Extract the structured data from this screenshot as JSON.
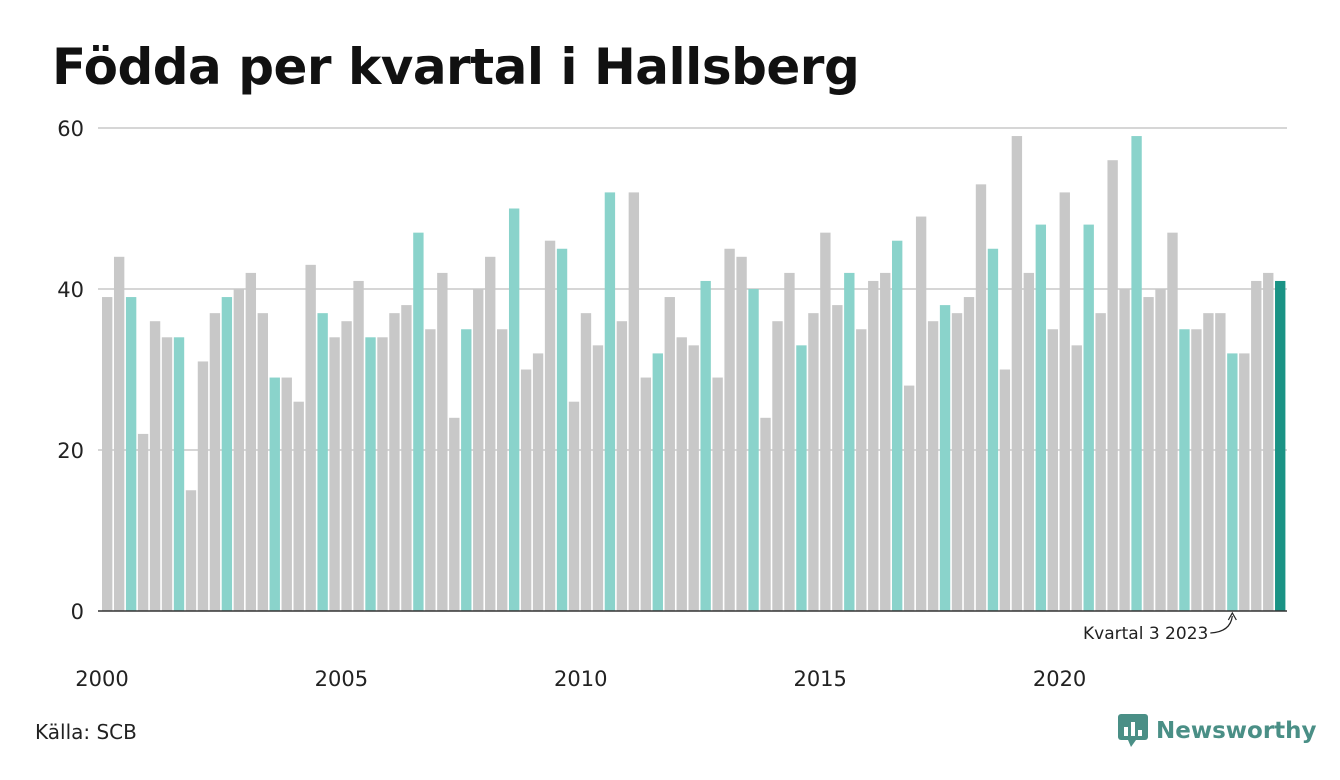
{
  "chart_data": {
    "type": "bar",
    "title": "Födda per kvartal i Hallsberg",
    "subtitle": "",
    "xlabel": "",
    "ylabel": "",
    "ylim": [
      0,
      60
    ],
    "yticks": [
      "0",
      "20",
      "40",
      "60"
    ],
    "grid": true,
    "xticks": [
      {
        "label": "2000",
        "year": 2000
      },
      {
        "label": "2005",
        "year": 2005
      },
      {
        "label": "2010",
        "year": 2010
      },
      {
        "label": "2015",
        "year": 2015
      },
      {
        "label": "2020",
        "year": 2020
      }
    ],
    "start_year": 2000,
    "start_quarter": 1,
    "quarters_per_year": 4,
    "highlight_quarter": 3,
    "values": [
      39,
      44,
      39,
      22,
      36,
      34,
      34,
      15,
      31,
      37,
      39,
      40,
      42,
      37,
      29,
      29,
      26,
      43,
      37,
      34,
      36,
      41,
      34,
      34,
      37,
      38,
      47,
      35,
      42,
      24,
      35,
      40,
      44,
      35,
      50,
      30,
      32,
      46,
      45,
      26,
      37,
      33,
      52,
      36,
      52,
      29,
      32,
      39,
      34,
      33,
      41,
      29,
      45,
      44,
      40,
      24,
      36,
      42,
      33,
      37,
      47,
      38,
      42,
      35,
      41,
      42,
      46,
      28,
      49,
      36,
      38,
      37,
      39,
      53,
      45,
      30,
      59,
      42,
      48,
      35,
      52,
      33,
      48,
      37,
      56,
      40,
      59,
      39,
      40,
      47,
      35,
      35,
      37,
      37,
      32,
      32,
      41,
      42,
      41
    ],
    "annotation": {
      "label": "Kvartal 3 2023",
      "year": 2023,
      "quarter": 3
    },
    "colors": {
      "default": "#c8c8c8",
      "highlight": "#8ad3cb",
      "latest": "#1a9385",
      "grid": "#d6d6d6",
      "axis": "#333333"
    }
  },
  "source": "Källa: SCB",
  "brand": {
    "name": "Newsworthy",
    "logo_icon": "newsworthy-logo-icon",
    "color": "#4a8f86"
  }
}
